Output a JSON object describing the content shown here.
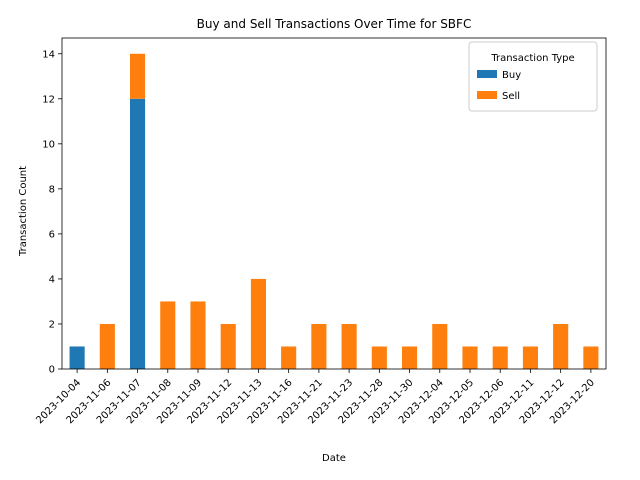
{
  "chart_data": {
    "type": "bar",
    "stacked": true,
    "title": "Buy and Sell Transactions Over Time for SBFC",
    "xlabel": "Date",
    "ylabel": "Transaction Count",
    "ylim": [
      0,
      14.7
    ],
    "yticks": [
      0,
      2,
      4,
      6,
      8,
      10,
      12,
      14
    ],
    "categories": [
      "2023-10-04",
      "2023-11-06",
      "2023-11-07",
      "2023-11-08",
      "2023-11-09",
      "2023-11-12",
      "2023-11-13",
      "2023-11-16",
      "2023-11-21",
      "2023-11-23",
      "2023-11-28",
      "2023-11-30",
      "2023-12-04",
      "2023-12-05",
      "2023-12-06",
      "2023-12-11",
      "2023-12-12",
      "2023-12-20"
    ],
    "series": [
      {
        "name": "Buy",
        "color": "#1f77b4",
        "values": [
          1,
          0,
          12,
          0,
          0,
          0,
          0,
          0,
          0,
          0,
          0,
          0,
          0,
          0,
          0,
          0,
          0,
          0
        ]
      },
      {
        "name": "Sell",
        "color": "#ff7f0e",
        "values": [
          0,
          2,
          2,
          3,
          3,
          2,
          4,
          1,
          2,
          2,
          1,
          1,
          2,
          1,
          1,
          1,
          2,
          1
        ]
      }
    ],
    "legend": {
      "title": "Transaction Type",
      "position": "top-right"
    },
    "grid": false
  }
}
